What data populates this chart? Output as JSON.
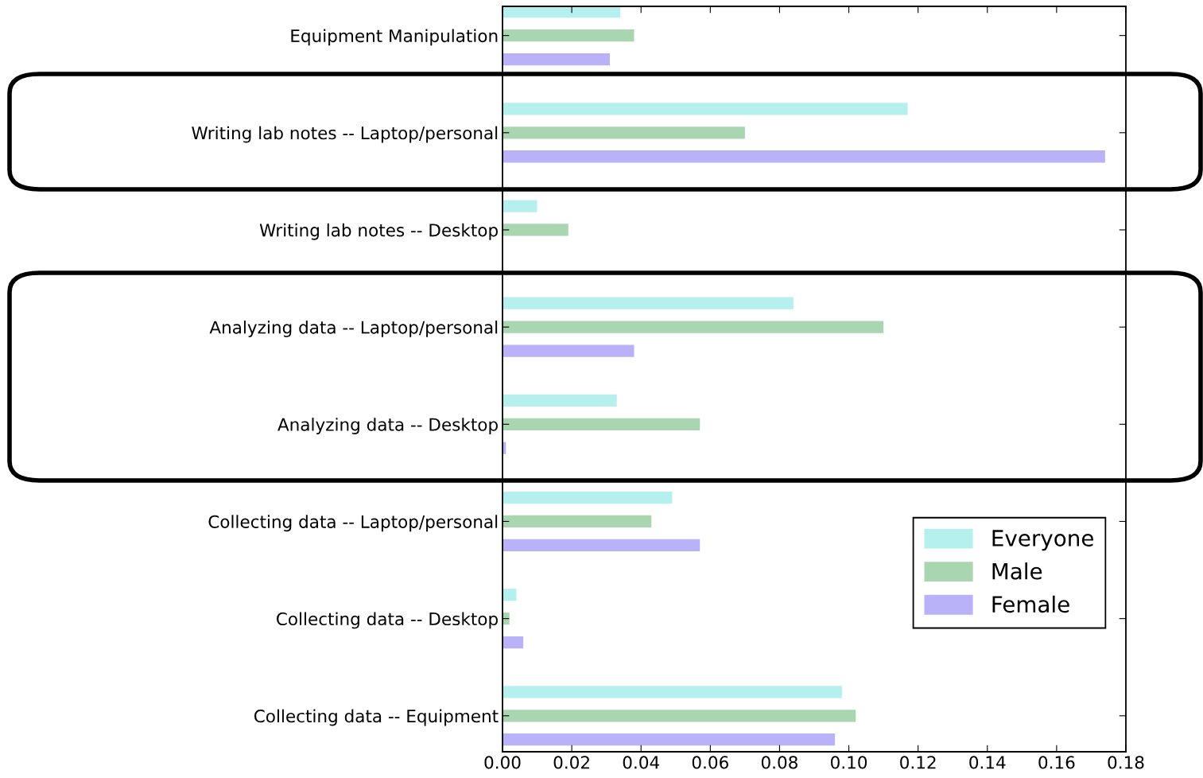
{
  "chart_data": {
    "type": "bar",
    "orientation": "horizontal",
    "categories": [
      "Equipment Manipulation",
      "Writing lab notes -- Laptop/personal",
      "Writing lab notes -- Desktop",
      "Analyzing data -- Laptop/personal",
      "Analyzing data -- Desktop",
      "Collecting data -- Laptop/personal",
      "Collecting data -- Desktop",
      "Collecting data -- Equipment"
    ],
    "series": [
      {
        "name": "Everyone",
        "color": "#b5f0ee",
        "values": [
          0.034,
          0.117,
          0.01,
          0.084,
          0.033,
          0.049,
          0.004,
          0.098
        ]
      },
      {
        "name": "Male",
        "color": "#a9d6b1",
        "values": [
          0.038,
          0.07,
          0.019,
          0.11,
          0.057,
          0.043,
          0.002,
          0.102
        ]
      },
      {
        "name": "Female",
        "color": "#b9b2f8",
        "values": [
          0.031,
          0.174,
          0.0,
          0.038,
          0.001,
          0.057,
          0.006,
          0.096
        ]
      }
    ],
    "xlim": [
      0,
      0.18
    ],
    "xticks": [
      {
        "value": 0,
        "label": "0.00"
      },
      {
        "value": 0.02,
        "label": "0.02"
      },
      {
        "value": 0.04,
        "label": "0.04"
      },
      {
        "value": 0.06,
        "label": "0.06"
      },
      {
        "value": 0.08,
        "label": "0.08"
      },
      {
        "value": 0.1,
        "label": "0.10"
      },
      {
        "value": 0.12,
        "label": "0.12"
      },
      {
        "value": 0.14,
        "label": "0.14"
      },
      {
        "value": 0.16,
        "label": "0.16"
      },
      {
        "value": 0.18,
        "label": "0.18"
      }
    ],
    "legend": "right",
    "grid": false
  }
}
